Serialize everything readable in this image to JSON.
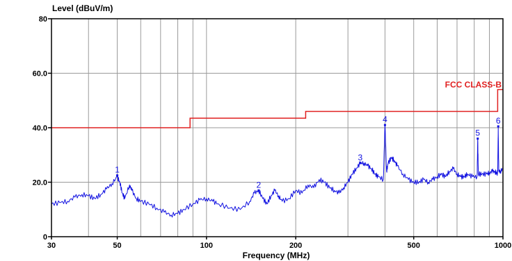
{
  "chart_data": {
    "type": "line",
    "ylabel": "Level (dBuV/m)",
    "xlabel": "Frequency (MHz)",
    "x_scale": "log",
    "xlim": [
      30,
      1000
    ],
    "ylim": [
      0,
      80
    ],
    "x_ticks": [
      {
        "value": 30,
        "label": "30"
      },
      {
        "value": 50,
        "label": "50"
      },
      {
        "value": 100,
        "label": "100"
      },
      {
        "value": 200,
        "label": "200"
      },
      {
        "value": 500,
        "label": "500"
      },
      {
        "value": 1000,
        "label": "1000"
      }
    ],
    "y_ticks": [
      {
        "value": 0,
        "label": "0"
      },
      {
        "value": 20,
        "label": "20.0"
      },
      {
        "value": 40,
        "label": "40.0"
      },
      {
        "value": 60,
        "label": "60.0"
      },
      {
        "value": 80,
        "label": "80"
      }
    ],
    "x_grid": [
      30,
      40,
      50,
      60,
      70,
      80,
      90,
      100,
      200,
      300,
      400,
      500,
      600,
      700,
      800,
      900,
      1000
    ],
    "grid": true,
    "limit_line": {
      "name": "FCC CLASS-B",
      "color": "#e02020",
      "points": [
        [
          30,
          40
        ],
        [
          88,
          40
        ],
        [
          88,
          43.5
        ],
        [
          216,
          43.5
        ],
        [
          216,
          46
        ],
        [
          960,
          46
        ],
        [
          960,
          54
        ],
        [
          1000,
          54
        ]
      ]
    },
    "series": [
      {
        "color": "#1010e0",
        "points": [
          [
            30,
            12
          ],
          [
            32,
            12.5
          ],
          [
            34,
            13
          ],
          [
            36,
            14.5
          ],
          [
            38,
            15.5
          ],
          [
            40,
            15
          ],
          [
            42,
            14
          ],
          [
            44,
            15.5
          ],
          [
            46,
            17.5
          ],
          [
            48,
            19.5
          ],
          [
            50,
            22
          ],
          [
            51,
            20
          ],
          [
            52,
            16
          ],
          [
            53,
            14
          ],
          [
            55,
            19
          ],
          [
            56,
            17
          ],
          [
            58,
            14
          ],
          [
            60,
            13
          ],
          [
            64,
            12
          ],
          [
            68,
            10.5
          ],
          [
            72,
            9
          ],
          [
            76,
            8
          ],
          [
            80,
            8.5
          ],
          [
            84,
            10
          ],
          [
            90,
            12
          ],
          [
            95,
            13.5
          ],
          [
            100,
            14
          ],
          [
            105,
            13
          ],
          [
            110,
            12
          ],
          [
            120,
            10.5
          ],
          [
            130,
            10
          ],
          [
            140,
            13
          ],
          [
            145,
            16
          ],
          [
            150,
            17
          ],
          [
            155,
            14
          ],
          [
            160,
            12
          ],
          [
            165,
            15
          ],
          [
            170,
            17
          ],
          [
            175,
            15
          ],
          [
            180,
            13
          ],
          [
            190,
            14
          ],
          [
            200,
            17
          ],
          [
            210,
            16
          ],
          [
            220,
            19
          ],
          [
            230,
            18
          ],
          [
            240,
            21
          ],
          [
            250,
            20
          ],
          [
            260,
            18
          ],
          [
            270,
            17
          ],
          [
            280,
            16
          ],
          [
            290,
            18
          ],
          [
            300,
            20
          ],
          [
            310,
            23
          ],
          [
            320,
            25
          ],
          [
            330,
            27
          ],
          [
            340,
            27
          ],
          [
            350,
            26
          ],
          [
            360,
            25
          ],
          [
            370,
            23
          ],
          [
            380,
            22
          ],
          [
            395,
            21
          ],
          [
            400,
            41
          ],
          [
            405,
            24
          ],
          [
            410,
            27
          ],
          [
            420,
            29
          ],
          [
            430,
            28
          ],
          [
            440,
            26
          ],
          [
            460,
            23
          ],
          [
            480,
            21
          ],
          [
            500,
            20
          ],
          [
            520,
            20
          ],
          [
            540,
            21
          ],
          [
            560,
            20
          ],
          [
            580,
            21
          ],
          [
            600,
            22
          ],
          [
            620,
            23
          ],
          [
            640,
            22
          ],
          [
            660,
            24
          ],
          [
            680,
            25
          ],
          [
            700,
            23
          ],
          [
            720,
            22
          ],
          [
            740,
            22
          ],
          [
            760,
            23
          ],
          [
            790,
            22
          ],
          [
            818,
            22
          ],
          [
            822,
            36
          ],
          [
            826,
            23
          ],
          [
            850,
            23
          ],
          [
            880,
            23
          ],
          [
            900,
            23.5
          ],
          [
            920,
            24
          ],
          [
            940,
            24
          ],
          [
            955,
            23
          ],
          [
            960,
            24
          ],
          [
            964,
            40.5
          ],
          [
            968,
            24
          ],
          [
            980,
            24
          ],
          [
            1000,
            25
          ]
        ]
      }
    ],
    "markers": [
      {
        "label": "1",
        "x": 50,
        "y": 22.5
      },
      {
        "label": "2",
        "x": 150,
        "y": 17
      },
      {
        "label": "3",
        "x": 330,
        "y": 27
      },
      {
        "label": "4",
        "x": 400,
        "y": 41
      },
      {
        "label": "5",
        "x": 822,
        "y": 36
      },
      {
        "label": "6",
        "x": 964,
        "y": 40.5
      }
    ]
  }
}
